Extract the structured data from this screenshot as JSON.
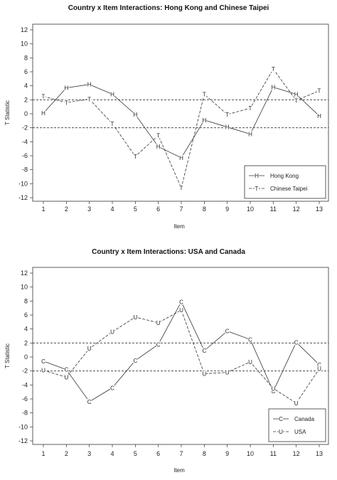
{
  "chart_data": [
    {
      "type": "line",
      "title": "Country x Item Interactions: Hong Kong and Chinese Taipei",
      "xlabel": "Item",
      "ylabel": "T Statistic",
      "x": [
        1,
        2,
        3,
        4,
        5,
        6,
        7,
        8,
        9,
        10,
        11,
        12,
        13
      ],
      "xlim": [
        1,
        13
      ],
      "ylim": [
        -12,
        12
      ],
      "yticks": [
        12,
        10,
        8,
        6,
        4,
        2,
        0,
        -2,
        -4,
        -6,
        -8,
        -10,
        -12
      ],
      "reference_lines": [
        2,
        -2
      ],
      "legend_position": "bottom-right",
      "series": [
        {
          "name": "Hong Kong",
          "marker": "H",
          "line": "solid",
          "values": [
            0.1,
            3.7,
            4.2,
            2.8,
            -0.1,
            -4.7,
            -6.3,
            -0.9,
            -1.9,
            -2.9,
            3.8,
            2.8,
            -0.3
          ]
        },
        {
          "name": "Chinese Taipei",
          "marker": "T",
          "line": "dashed",
          "values": [
            2.5,
            1.6,
            2.1,
            -1.4,
            -6.1,
            -3.1,
            -10.6,
            2.8,
            -0.1,
            0.8,
            6.4,
            1.9,
            3.3
          ]
        }
      ]
    },
    {
      "type": "line",
      "title": "Country x Item Interactions: USA and Canada",
      "xlabel": "Item",
      "ylabel": "T Statistic",
      "x": [
        1,
        2,
        3,
        4,
        5,
        6,
        7,
        8,
        9,
        10,
        11,
        12,
        13
      ],
      "xlim": [
        1,
        13
      ],
      "ylim": [
        -12,
        12
      ],
      "yticks": [
        12,
        10,
        8,
        6,
        4,
        2,
        0,
        -2,
        -4,
        -6,
        -8,
        -10,
        -12
      ],
      "reference_lines": [
        2,
        -2
      ],
      "legend_position": "bottom-right",
      "series": [
        {
          "name": "Canada",
          "marker": "C",
          "line": "solid",
          "values": [
            -0.6,
            -1.8,
            -6.4,
            -4.4,
            -0.5,
            1.8,
            7.9,
            0.9,
            3.7,
            2.5,
            -4.9,
            2.1,
            -1.1
          ]
        },
        {
          "name": "USA",
          "marker": "U",
          "line": "dashed",
          "values": [
            -1.9,
            -2.9,
            1.2,
            3.6,
            5.7,
            4.9,
            6.7,
            -2.4,
            -2.2,
            -0.7,
            -4.5,
            -6.6,
            -1.7
          ]
        }
      ]
    }
  ]
}
